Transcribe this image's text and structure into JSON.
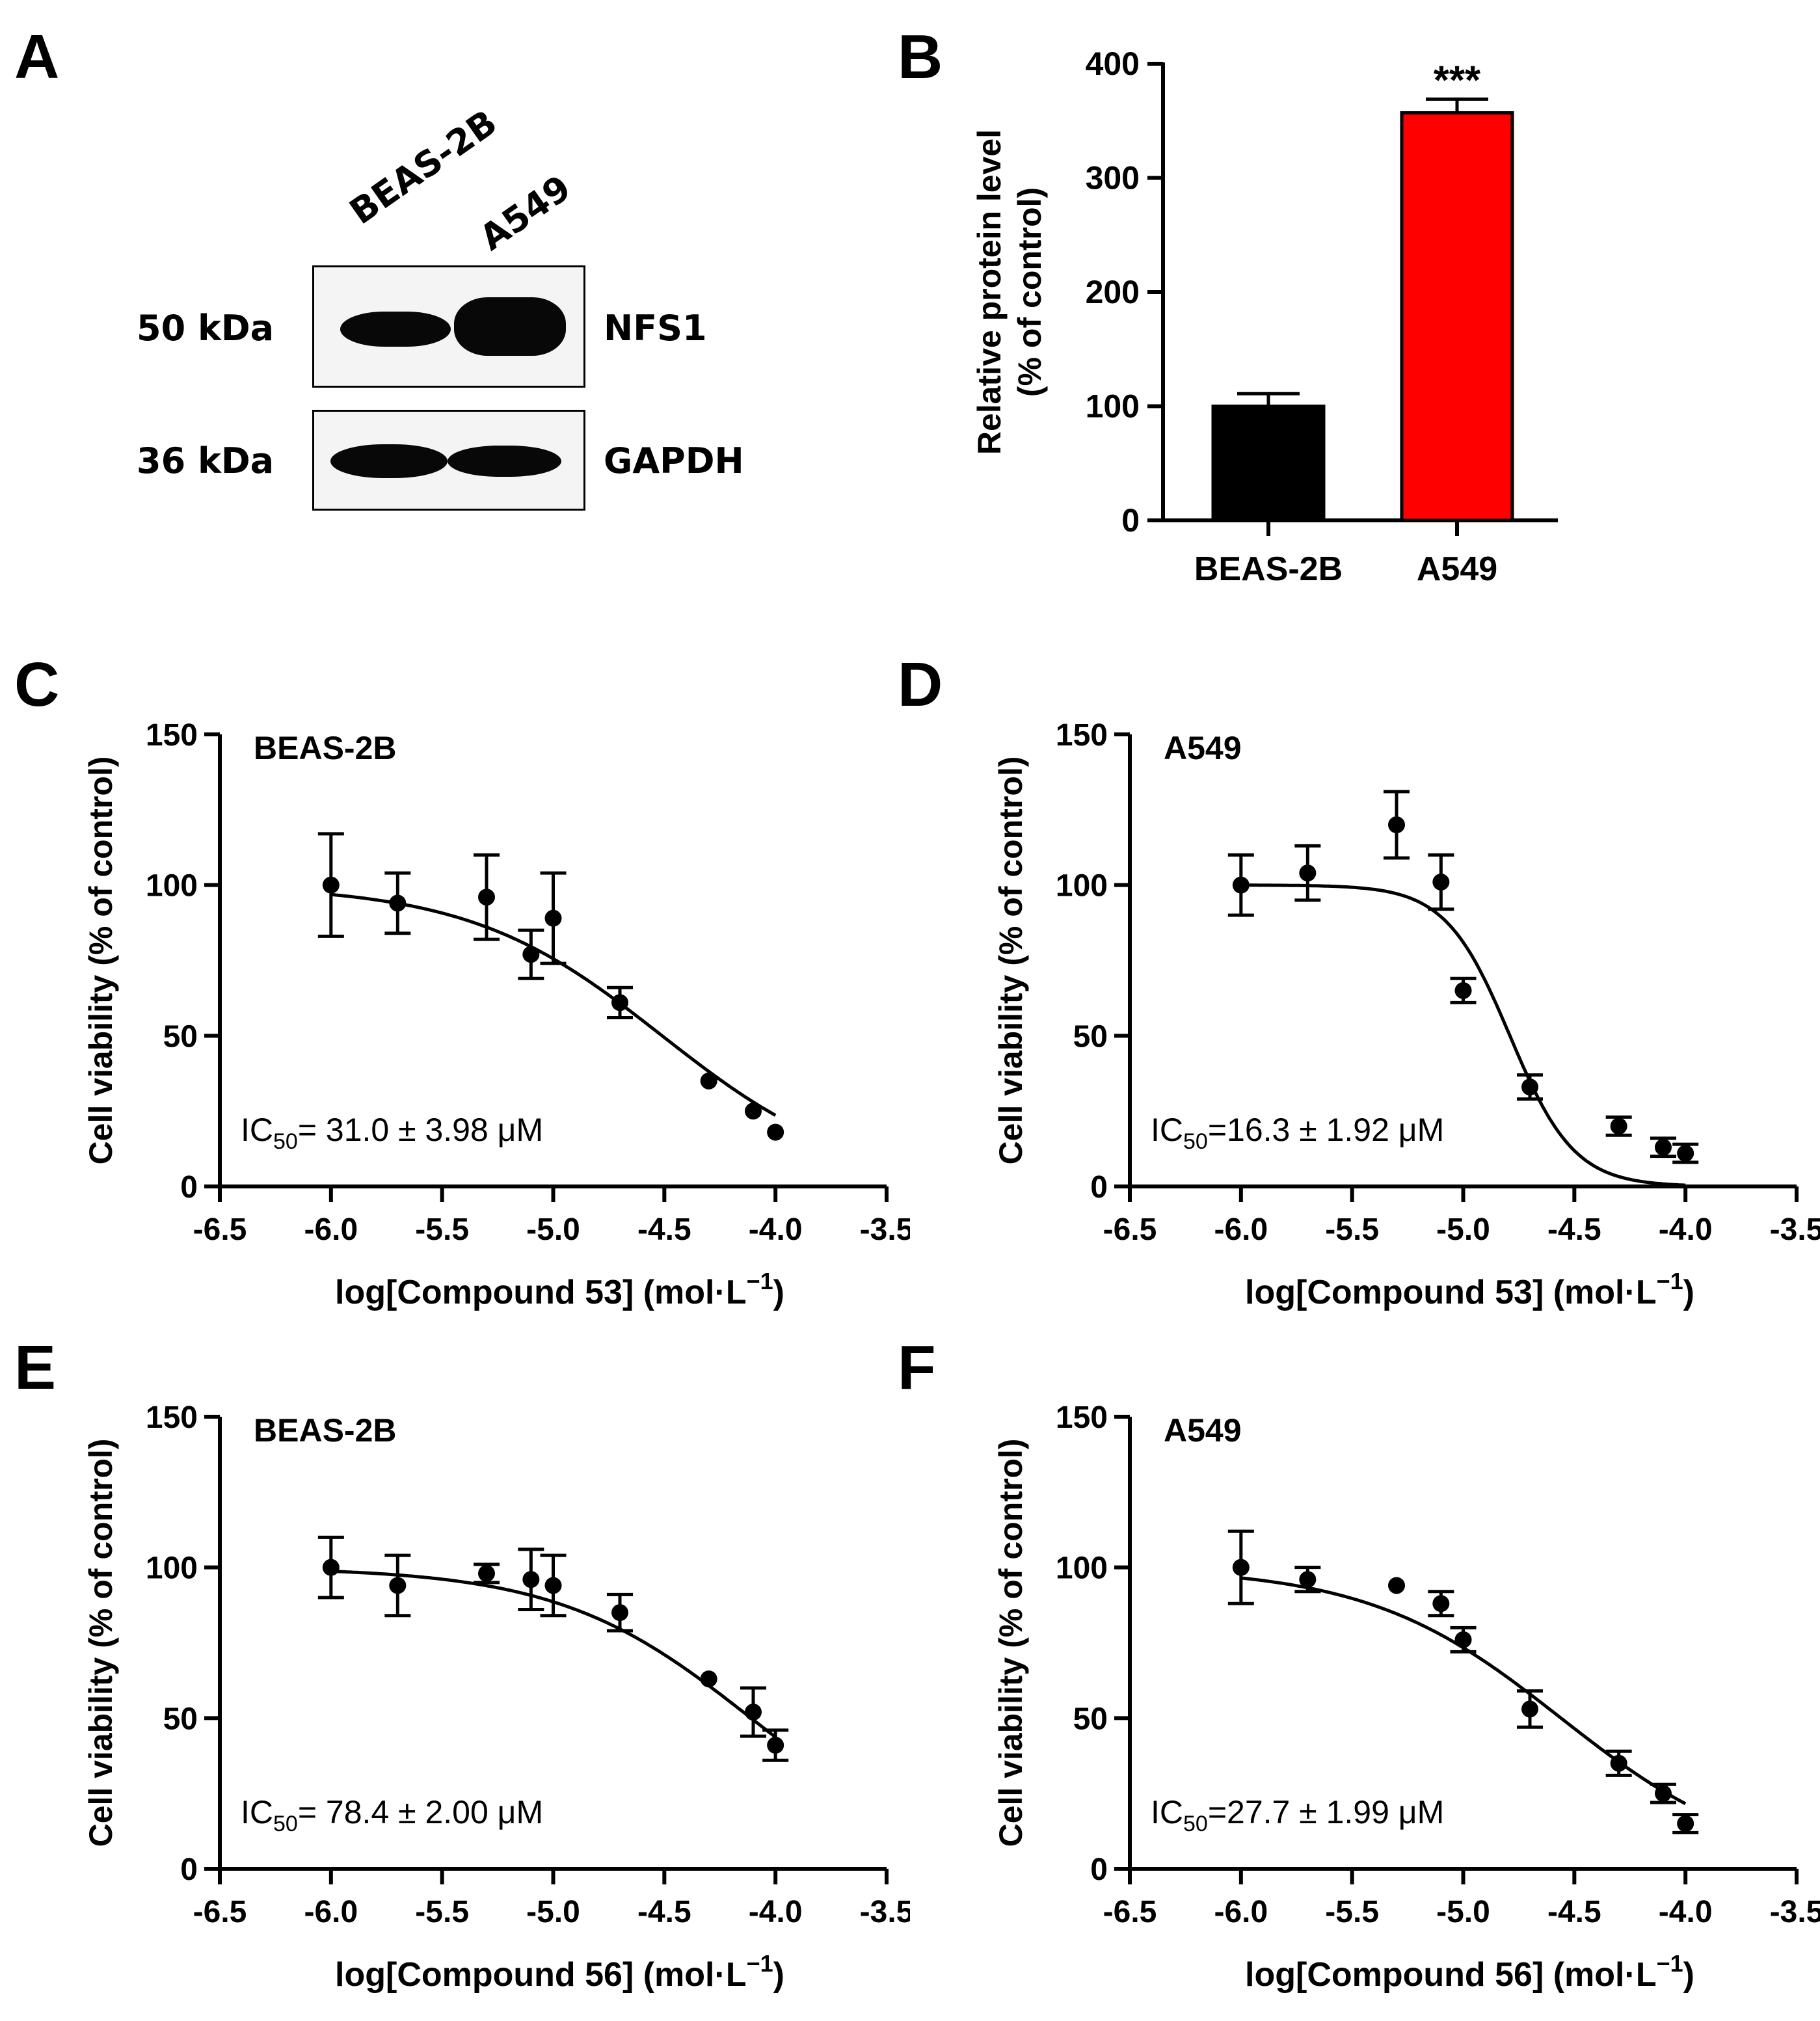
{
  "panels": {
    "A": "A",
    "B": "B",
    "C": "C",
    "D": "D",
    "E": "E",
    "F": "F"
  },
  "blot": {
    "lanes": [
      "BEAS-2B",
      "A549"
    ],
    "rows": [
      {
        "size": "50 kDa",
        "protein": "NFS1"
      },
      {
        "size": "36 kDa",
        "protein": "GAPDH"
      }
    ]
  },
  "chart_data": [
    {
      "id": "B",
      "type": "bar",
      "title": "",
      "categories": [
        "BEAS-2B",
        "A549"
      ],
      "values": [
        100,
        357
      ],
      "errors": [
        11,
        12
      ],
      "colors": [
        "#000000",
        "#ff0000"
      ],
      "ylabel_line1": "Relative protein level",
      "ylabel_line2": "(% of control)",
      "ylim": [
        0,
        400
      ],
      "yticks": [
        "0",
        "100",
        "200",
        "300",
        "400"
      ],
      "annotation": "***"
    },
    {
      "id": "C",
      "type": "scatter",
      "label": "BEAS-2B",
      "ic50_prefix": "IC",
      "ic50_sub": "50",
      "ic50_value": "= 31.0 ± 3.98 μM",
      "xlabel_main": "log[Compound 53] (mol·L",
      "xlabel_sup": "−1",
      "xlabel_end": ")",
      "ylabel": "Cell viability (% of control)",
      "xlim": [
        -6.5,
        -3.5
      ],
      "ylim": [
        0,
        150
      ],
      "xticks": [
        "-6.5",
        "-6.0",
        "-5.5",
        "-5.0",
        "-4.5",
        "-4.0",
        "-3.5"
      ],
      "yticks": [
        "0",
        "50",
        "100",
        "150"
      ],
      "x": [
        -6.0,
        -5.7,
        -5.3,
        -5.1,
        -5.0,
        -4.7,
        -4.3,
        -4.1,
        -4.0
      ],
      "y": [
        100,
        94,
        96,
        77,
        89,
        61,
        35,
        25,
        18
      ],
      "err": [
        17,
        10,
        14,
        8,
        15,
        5,
        1,
        1,
        1
      ],
      "fit": {
        "top": 100,
        "bottom": 0,
        "logIC50": -4.51,
        "hill": 1.0
      }
    },
    {
      "id": "D",
      "type": "scatter",
      "label": "A549",
      "ic50_prefix": "IC",
      "ic50_sub": "50",
      "ic50_value": "=16.3 ± 1.92 μM",
      "xlabel_main": "log[Compound 53] (mol·L",
      "xlabel_sup": "−1",
      "xlabel_end": ")",
      "ylabel": "Cell viability (% of control)",
      "xlim": [
        -6.5,
        -3.5
      ],
      "ylim": [
        0,
        150
      ],
      "xticks": [
        "-6.5",
        "-6.0",
        "-5.5",
        "-5.0",
        "-4.5",
        "-4.0",
        "-3.5"
      ],
      "yticks": [
        "0",
        "50",
        "100",
        "150"
      ],
      "x": [
        -6.0,
        -5.7,
        -5.3,
        -5.1,
        -5.0,
        -4.7,
        -4.3,
        -4.1,
        -4.0
      ],
      "y": [
        100,
        104,
        120,
        101,
        65,
        33,
        20,
        13,
        11
      ],
      "err": [
        10,
        9,
        11,
        9,
        4,
        4,
        3,
        3,
        3
      ],
      "fit": {
        "top": 100,
        "bottom": 0,
        "logIC50": -4.79,
        "hill": 3.0
      }
    },
    {
      "id": "E",
      "type": "scatter",
      "label": "BEAS-2B",
      "ic50_prefix": "IC",
      "ic50_sub": "50",
      "ic50_value": "= 78.4 ± 2.00 μM",
      "xlabel_main": "log[Compound 56] (mol·L",
      "xlabel_sup": "−1",
      "xlabel_end": ")",
      "ylabel": "Cell viability (% of control)",
      "xlim": [
        -6.5,
        -3.5
      ],
      "ylim": [
        0,
        150
      ],
      "xticks": [
        "-6.5",
        "-6.0",
        "-5.5",
        "-5.0",
        "-4.5",
        "-4.0",
        "-3.5"
      ],
      "yticks": [
        "0",
        "50",
        "100",
        "150"
      ],
      "x": [
        -6.0,
        -5.7,
        -5.3,
        -5.1,
        -5.0,
        -4.7,
        -4.3,
        -4.1,
        -4.0
      ],
      "y": [
        100,
        94,
        98,
        96,
        94,
        85,
        63,
        52,
        41
      ],
      "err": [
        10,
        10,
        3,
        10,
        10,
        6,
        1,
        8,
        5
      ],
      "fit": {
        "top": 100,
        "bottom": 0,
        "logIC50": -4.11,
        "hill": 1.0
      }
    },
    {
      "id": "F",
      "type": "scatter",
      "label": "A549",
      "ic50_prefix": "IC",
      "ic50_sub": "50",
      "ic50_value": "=27.7 ± 1.99 μM",
      "xlabel_main": "log[Compound 56] (mol·L",
      "xlabel_sup": "−1",
      "xlabel_end": ")",
      "ylabel": "Cell viability (% of control)",
      "xlim": [
        -6.5,
        -3.5
      ],
      "ylim": [
        0,
        150
      ],
      "xticks": [
        "-6.5",
        "-6.0",
        "-5.5",
        "-5.0",
        "-4.5",
        "-4.0",
        "-3.5"
      ],
      "yticks": [
        "0",
        "50",
        "100",
        "150"
      ],
      "x": [
        -6.0,
        -5.7,
        -5.3,
        -5.1,
        -5.0,
        -4.7,
        -4.3,
        -4.1,
        -4.0
      ],
      "y": [
        100,
        96,
        94,
        88,
        76,
        53,
        35,
        25,
        15
      ],
      "err": [
        12,
        4,
        1,
        4,
        4,
        6,
        4,
        3,
        3
      ],
      "fit": {
        "top": 100,
        "bottom": 0,
        "logIC50": -4.56,
        "hill": 1.0
      }
    }
  ]
}
